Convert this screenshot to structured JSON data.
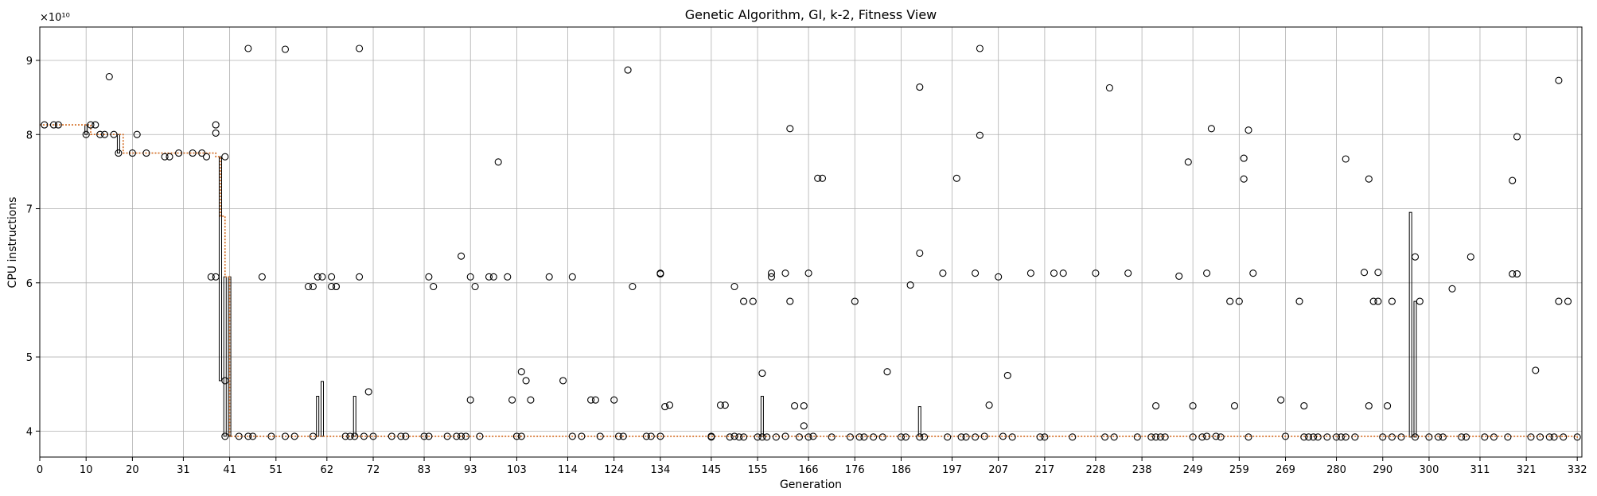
{
  "chart_data": {
    "type": "scatter",
    "title": "Genetic Algorithm, GI, k-2, Fitness View",
    "xlabel": "Generation",
    "ylabel": "CPU instructions",
    "y_multiplier_label": "×10¹⁰",
    "xlim": [
      0,
      333
    ],
    "ylim": [
      3.65,
      9.45
    ],
    "x_ticks": [
      "0",
      "10",
      "20",
      "31",
      "41",
      "51",
      "62",
      "72",
      "83",
      "93",
      "103",
      "114",
      "124",
      "134",
      "145",
      "155",
      "166",
      "176",
      "186",
      "197",
      "207",
      "217",
      "228",
      "238",
      "249",
      "259",
      "269",
      "280",
      "290",
      "300",
      "311",
      "321",
      "332"
    ],
    "y_ticks": [
      "4",
      "5",
      "6",
      "7",
      "8",
      "9"
    ],
    "grid": true,
    "colors": {
      "marker": "#000000",
      "best_line": "#d2691e",
      "spread": "#000000"
    },
    "series": [
      {
        "values_unit": "1e10",
        "best_trace": [
          [
            0,
            8.13
          ],
          [
            10,
            8.13
          ],
          [
            11,
            8.0
          ],
          [
            17,
            8.0
          ],
          [
            18,
            7.75
          ],
          [
            38,
            7.7
          ],
          [
            39,
            6.9
          ],
          [
            40,
            6.08
          ],
          [
            41,
            3.93
          ],
          [
            332,
            3.91
          ]
        ],
        "spread_bars": [
          [
            10,
            8.0,
            8.13
          ],
          [
            17,
            7.75,
            8.0
          ],
          [
            39,
            4.68,
            7.7
          ],
          [
            40,
            3.93,
            6.08
          ],
          [
            41,
            3.93,
            6.08
          ],
          [
            60,
            3.93,
            4.47
          ],
          [
            61,
            3.93,
            4.67
          ],
          [
            68,
            3.93,
            4.47
          ],
          [
            156,
            3.93,
            4.47
          ],
          [
            190,
            3.93,
            4.33
          ],
          [
            296,
            3.92,
            6.95
          ],
          [
            297,
            3.92,
            5.75
          ]
        ],
        "points": [
          [
            1,
            8.13
          ],
          [
            3,
            8.13
          ],
          [
            4,
            8.13
          ],
          [
            10,
            8.0
          ],
          [
            11,
            8.13
          ],
          [
            12,
            8.13
          ],
          [
            13,
            8.0
          ],
          [
            14,
            8.0
          ],
          [
            15,
            8.78
          ],
          [
            16,
            8.0
          ],
          [
            17,
            7.75
          ],
          [
            20,
            7.75
          ],
          [
            21,
            8.0
          ],
          [
            23,
            7.75
          ],
          [
            27,
            7.7
          ],
          [
            28,
            7.7
          ],
          [
            30,
            7.75
          ],
          [
            33,
            7.75
          ],
          [
            35,
            7.75
          ],
          [
            36,
            7.7
          ],
          [
            37,
            6.08
          ],
          [
            38,
            6.08
          ],
          [
            38,
            8.02
          ],
          [
            38,
            8.13
          ],
          [
            40,
            7.7
          ],
          [
            40,
            4.68
          ],
          [
            40,
            3.93
          ],
          [
            43,
            3.93
          ],
          [
            45,
            3.93
          ],
          [
            45,
            9.16
          ],
          [
            46,
            3.93
          ],
          [
            48,
            6.08
          ],
          [
            50,
            3.93
          ],
          [
            53,
            3.93
          ],
          [
            53,
            9.15
          ],
          [
            55,
            3.93
          ],
          [
            58,
            5.95
          ],
          [
            59,
            5.95
          ],
          [
            59,
            3.93
          ],
          [
            60,
            6.08
          ],
          [
            61,
            6.08
          ],
          [
            63,
            5.95
          ],
          [
            63,
            6.08
          ],
          [
            64,
            5.95
          ],
          [
            64,
            5.95
          ],
          [
            66,
            3.93
          ],
          [
            67,
            3.93
          ],
          [
            68,
            3.93
          ],
          [
            69,
            6.08
          ],
          [
            69,
            9.16
          ],
          [
            70,
            3.93
          ],
          [
            71,
            4.53
          ],
          [
            72,
            3.93
          ],
          [
            76,
            3.93
          ],
          [
            78,
            3.93
          ],
          [
            79,
            3.93
          ],
          [
            83,
            3.93
          ],
          [
            84,
            3.93
          ],
          [
            84,
            6.08
          ],
          [
            85,
            5.95
          ],
          [
            88,
            3.93
          ],
          [
            90,
            3.93
          ],
          [
            91,
            3.93
          ],
          [
            91,
            6.36
          ],
          [
            92,
            3.93
          ],
          [
            93,
            6.08
          ],
          [
            93,
            4.42
          ],
          [
            94,
            5.95
          ],
          [
            95,
            3.93
          ],
          [
            97,
            6.08
          ],
          [
            98,
            6.08
          ],
          [
            99,
            7.63
          ],
          [
            101,
            6.08
          ],
          [
            102,
            4.42
          ],
          [
            103,
            3.93
          ],
          [
            104,
            3.93
          ],
          [
            104,
            4.8
          ],
          [
            105,
            4.68
          ],
          [
            106,
            4.42
          ],
          [
            110,
            6.08
          ],
          [
            113,
            4.68
          ],
          [
            115,
            6.08
          ],
          [
            115,
            3.93
          ],
          [
            117,
            3.93
          ],
          [
            119,
            4.42
          ],
          [
            120,
            4.42
          ],
          [
            121,
            3.93
          ],
          [
            124,
            4.42
          ],
          [
            125,
            3.93
          ],
          [
            126,
            3.93
          ],
          [
            127,
            8.87
          ],
          [
            128,
            5.95
          ],
          [
            131,
            3.93
          ],
          [
            132,
            3.93
          ],
          [
            134,
            3.93
          ],
          [
            134,
            6.13
          ],
          [
            134,
            6.12
          ],
          [
            135,
            4.33
          ],
          [
            136,
            4.35
          ],
          [
            145,
            3.93
          ],
          [
            145,
            3.92
          ],
          [
            147,
            4.35
          ],
          [
            148,
            4.35
          ],
          [
            149,
            3.92
          ],
          [
            150,
            3.93
          ],
          [
            150,
            5.95
          ],
          [
            151,
            3.92
          ],
          [
            152,
            5.75
          ],
          [
            152,
            3.92
          ],
          [
            154,
            5.75
          ],
          [
            155,
            3.92
          ],
          [
            156,
            3.92
          ],
          [
            156,
            4.78
          ],
          [
            157,
            3.92
          ],
          [
            158,
            6.13
          ],
          [
            158,
            6.08
          ],
          [
            159,
            3.92
          ],
          [
            161,
            3.93
          ],
          [
            161,
            6.13
          ],
          [
            162,
            5.75
          ],
          [
            162,
            8.08
          ],
          [
            163,
            4.34
          ],
          [
            164,
            3.92
          ],
          [
            165,
            4.34
          ],
          [
            165,
            4.07
          ],
          [
            166,
            6.13
          ],
          [
            166,
            3.92
          ],
          [
            167,
            3.93
          ],
          [
            168,
            7.41
          ],
          [
            169,
            7.41
          ],
          [
            171,
            3.92
          ],
          [
            175,
            3.92
          ],
          [
            176,
            5.75
          ],
          [
            177,
            3.92
          ],
          [
            178,
            3.92
          ],
          [
            180,
            3.92
          ],
          [
            182,
            3.92
          ],
          [
            183,
            4.8
          ],
          [
            186,
            3.92
          ],
          [
            187,
            3.92
          ],
          [
            188,
            5.97
          ],
          [
            190,
            3.92
          ],
          [
            190,
            6.4
          ],
          [
            190,
            8.64
          ],
          [
            191,
            3.92
          ],
          [
            195,
            6.13
          ],
          [
            196,
            3.92
          ],
          [
            198,
            7.41
          ],
          [
            199,
            3.92
          ],
          [
            200,
            3.92
          ],
          [
            202,
            3.92
          ],
          [
            202,
            6.13
          ],
          [
            203,
            7.99
          ],
          [
            203,
            9.16
          ],
          [
            204,
            3.93
          ],
          [
            205,
            4.35
          ],
          [
            207,
            6.08
          ],
          [
            208,
            3.93
          ],
          [
            209,
            4.75
          ],
          [
            210,
            3.92
          ],
          [
            214,
            6.13
          ],
          [
            216,
            3.92
          ],
          [
            217,
            3.92
          ],
          [
            219,
            6.13
          ],
          [
            221,
            6.13
          ],
          [
            223,
            3.92
          ],
          [
            228,
            6.13
          ],
          [
            230,
            3.92
          ],
          [
            231,
            8.63
          ],
          [
            232,
            3.92
          ],
          [
            235,
            6.13
          ],
          [
            237,
            3.92
          ],
          [
            240,
            3.92
          ],
          [
            241,
            4.34
          ],
          [
            241,
            3.92
          ],
          [
            242,
            3.92
          ],
          [
            243,
            3.92
          ],
          [
            246,
            6.09
          ],
          [
            248,
            7.63
          ],
          [
            249,
            4.34
          ],
          [
            249,
            3.92
          ],
          [
            251,
            3.92
          ],
          [
            252,
            3.93
          ],
          [
            252,
            6.13
          ],
          [
            253,
            8.08
          ],
          [
            254,
            3.93
          ],
          [
            255,
            3.92
          ],
          [
            257,
            5.75
          ],
          [
            258,
            4.34
          ],
          [
            259,
            5.75
          ],
          [
            260,
            7.68
          ],
          [
            260,
            7.4
          ],
          [
            261,
            3.92
          ],
          [
            261,
            8.06
          ],
          [
            262,
            6.13
          ],
          [
            268,
            4.42
          ],
          [
            269,
            3.93
          ],
          [
            272,
            5.75
          ],
          [
            273,
            4.34
          ],
          [
            273,
            3.92
          ],
          [
            274,
            3.92
          ],
          [
            275,
            3.92
          ],
          [
            276,
            3.92
          ],
          [
            278,
            3.92
          ],
          [
            280,
            3.92
          ],
          [
            281,
            3.92
          ],
          [
            282,
            7.67
          ],
          [
            282,
            3.92
          ],
          [
            284,
            3.92
          ],
          [
            286,
            6.14
          ],
          [
            287,
            7.4
          ],
          [
            287,
            4.34
          ],
          [
            288,
            5.75
          ],
          [
            289,
            5.75
          ],
          [
            289,
            6.14
          ],
          [
            290,
            3.92
          ],
          [
            291,
            4.34
          ],
          [
            292,
            5.75
          ],
          [
            292,
            3.92
          ],
          [
            294,
            3.92
          ],
          [
            297,
            3.92
          ],
          [
            297,
            6.35
          ],
          [
            298,
            5.75
          ],
          [
            300,
            3.92
          ],
          [
            302,
            3.92
          ],
          [
            303,
            3.92
          ],
          [
            305,
            5.92
          ],
          [
            307,
            3.92
          ],
          [
            308,
            3.92
          ],
          [
            309,
            6.35
          ],
          [
            312,
            3.92
          ],
          [
            314,
            3.92
          ],
          [
            317,
            3.92
          ],
          [
            318,
            6.12
          ],
          [
            318,
            7.38
          ],
          [
            319,
            6.12
          ],
          [
            319,
            7.97
          ],
          [
            322,
            3.92
          ],
          [
            323,
            4.82
          ],
          [
            324,
            3.92
          ],
          [
            326,
            3.92
          ],
          [
            327,
            3.92
          ],
          [
            328,
            5.75
          ],
          [
            328,
            8.73
          ],
          [
            329,
            3.92
          ],
          [
            330,
            5.75
          ],
          [
            332,
            3.92
          ]
        ]
      }
    ]
  }
}
